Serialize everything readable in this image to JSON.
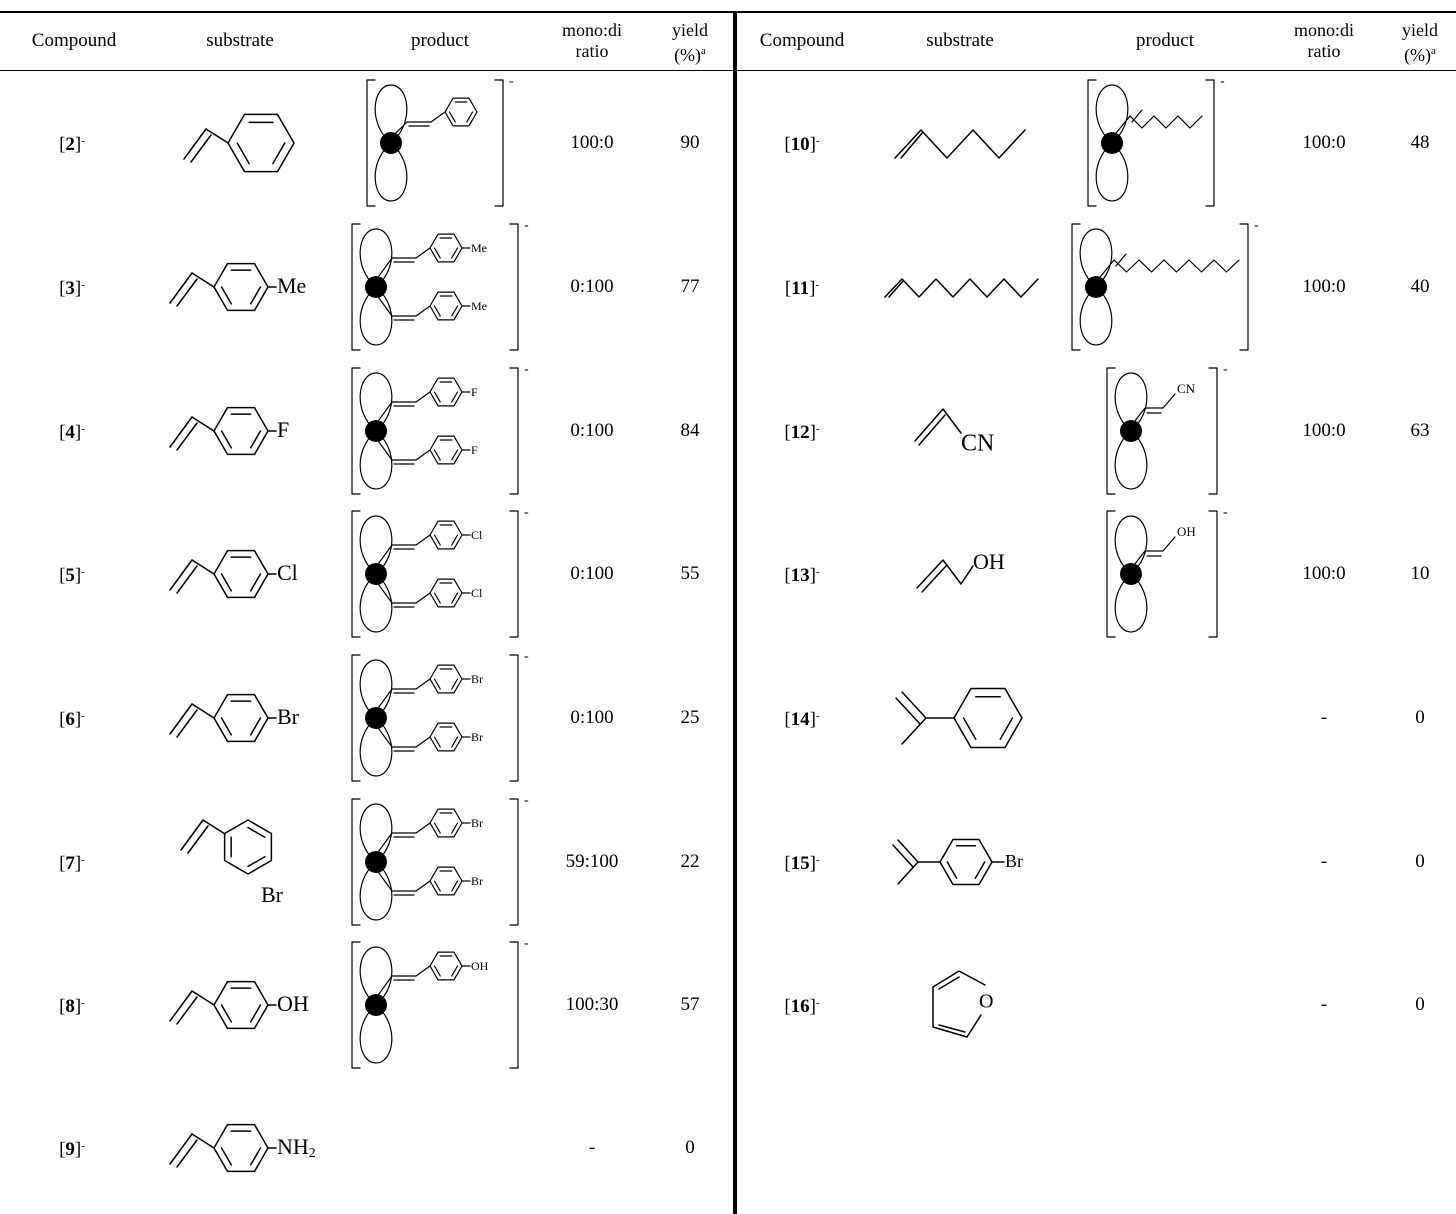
{
  "headers": {
    "compound": "Compound",
    "substrate": "substrate",
    "product": "product",
    "ratio_line1": "mono:di",
    "ratio_line2": "ratio",
    "yield_line1": "yield",
    "yield_line2": "(%)",
    "yield_footnote": "a"
  },
  "left_rows": [
    {
      "num": "2",
      "charge": "-",
      "substituent": "",
      "product_labels": [],
      "ratio": "100:0",
      "yield": "90"
    },
    {
      "num": "3",
      "charge": "-",
      "substituent": "Me",
      "product_labels": [
        "Me",
        "Me"
      ],
      "ratio": "0:100",
      "yield": "77"
    },
    {
      "num": "4",
      "charge": "-",
      "substituent": "F",
      "product_labels": [
        "F",
        "F"
      ],
      "ratio": "0:100",
      "yield": "84"
    },
    {
      "num": "5",
      "charge": "-",
      "substituent": "Cl",
      "product_labels": [
        "Cl",
        "Cl"
      ],
      "ratio": "0:100",
      "yield": "55"
    },
    {
      "num": "6",
      "charge": "-",
      "substituent": "Br",
      "product_labels": [
        "Br",
        "Br"
      ],
      "ratio": "0:100",
      "yield": "25"
    },
    {
      "num": "7",
      "charge": "-",
      "substituent": "Br",
      "product_labels": [
        "Br",
        "Br"
      ],
      "ratio": "59:100",
      "yield": "22"
    },
    {
      "num": "8",
      "charge": "-",
      "substituent": "OH",
      "product_labels": [
        "OH"
      ],
      "ratio": "100:30",
      "yield": "57"
    },
    {
      "num": "9",
      "charge": "-",
      "substituent": "NH",
      "substituent_sub": "2",
      "product_labels": [],
      "ratio": "-",
      "yield": "0"
    }
  ],
  "right_rows": [
    {
      "num": "10",
      "charge": "-",
      "substituent": "",
      "product_labels": [],
      "ratio": "100:0",
      "yield": "48"
    },
    {
      "num": "11",
      "charge": "-",
      "substituent": "",
      "product_labels": [],
      "ratio": "100:0",
      "yield": "40"
    },
    {
      "num": "12",
      "charge": "-",
      "substituent": "CN",
      "product_labels": [
        "CN"
      ],
      "ratio": "100:0",
      "yield": "63"
    },
    {
      "num": "13",
      "charge": "-",
      "substituent": "OH",
      "product_labels": [
        "OH"
      ],
      "ratio": "100:0",
      "yield": "10"
    },
    {
      "num": "14",
      "charge": "-",
      "substituent": "",
      "product_labels": [],
      "ratio": "-",
      "yield": "0"
    },
    {
      "num": "15",
      "charge": "-",
      "substituent": "Br",
      "product_labels": [],
      "ratio": "-",
      "yield": "0"
    },
    {
      "num": "16",
      "charge": "-",
      "substituent": "O",
      "product_labels": [],
      "ratio": "-",
      "yield": "0"
    }
  ]
}
